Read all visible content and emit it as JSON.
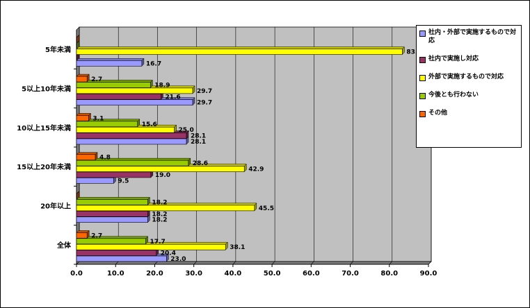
{
  "chart_data": {
    "type": "bar",
    "orientation": "horizontal",
    "categories": [
      "5年未満",
      "5以上10年未満",
      "10以上15年未満",
      "15以上20年未満",
      "20年以上",
      "全体"
    ],
    "series": [
      {
        "name": "社内・外部で実施するもので対応",
        "color": "#9999ff",
        "values": [
          16.7,
          29.7,
          28.1,
          9.5,
          18.2,
          23.0
        ]
      },
      {
        "name": "社内で実施し対応",
        "color": "#993366",
        "values": [
          0,
          21.6,
          28.1,
          19.0,
          18.2,
          20.4
        ]
      },
      {
        "name": "外部で実施するもので対応",
        "color": "#ffff00",
        "values": [
          83.3,
          29.7,
          25.0,
          42.9,
          45.5,
          38.1
        ]
      },
      {
        "name": "今後とも行わない",
        "color": "#99cc00",
        "values": [
          0,
          18.9,
          15.6,
          28.6,
          18.2,
          17.7
        ]
      },
      {
        "name": "その他",
        "color": "#ff6600",
        "values": [
          0,
          2.7,
          3.1,
          4.8,
          0,
          2.7
        ]
      }
    ],
    "data_labels": [
      [
        "16.7",
        "",
        "83.3",
        "",
        ""
      ],
      [
        "29.7",
        "21.6",
        "29.7",
        "18.9",
        "2.7"
      ],
      [
        "28.1",
        "28.1",
        "25.0",
        "15.6",
        "3.1"
      ],
      [
        "9.5",
        "19.0",
        "42.9",
        "28.6",
        "4.8"
      ],
      [
        "18.2",
        "18.2",
        "45.5",
        "18.2",
        ""
      ],
      [
        "23.0",
        "20.4",
        "38.1",
        "17.7",
        "2.7"
      ]
    ],
    "xlim": [
      0,
      90
    ],
    "xticks": [
      "0.0",
      "10.0",
      "20.0",
      "30.0",
      "40.0",
      "50.0",
      "60.0",
      "70.0",
      "80.0",
      "90.0"
    ],
    "grid": true,
    "legend": "right"
  }
}
